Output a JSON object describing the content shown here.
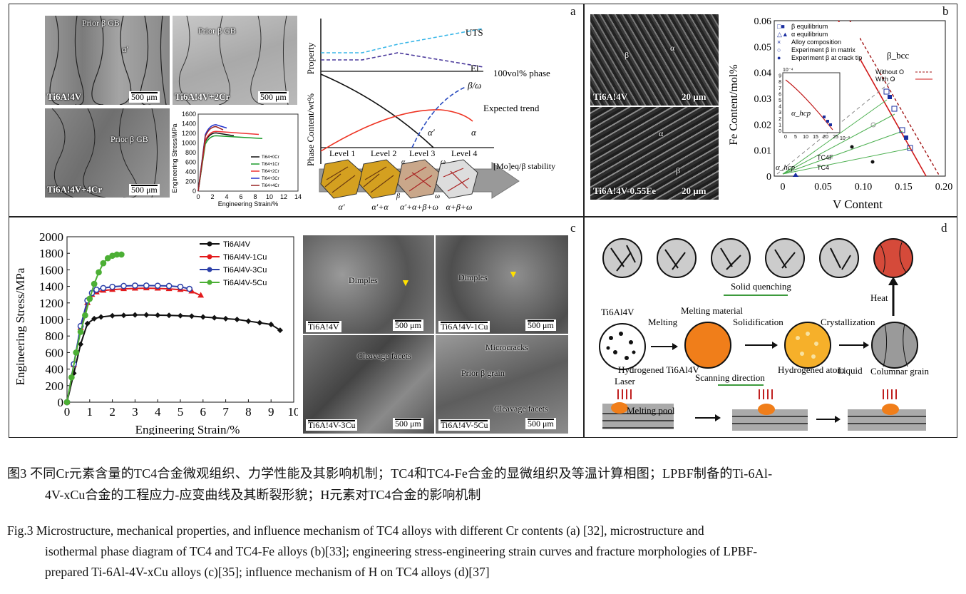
{
  "panels": {
    "a": {
      "letter": "a",
      "micrographs": [
        {
          "sample": "Ti6A!4V",
          "scale": "500 μm",
          "labels": [
            "Prior β GB",
            "α′"
          ]
        },
        {
          "sample": "Ti6A!4V+2Cr",
          "scale": "500 μm",
          "labels": [
            "Prior β GB"
          ]
        },
        {
          "sample": "Ti6A!4V+4Cr",
          "scale": "500 μm",
          "labels": [
            "Prior β GB"
          ]
        }
      ],
      "curve_chart": {
        "ylabel": "Engineering Stress/MPa",
        "xlabel": "Engineering Strain/%",
        "yticks": [
          "0",
          "200",
          "400",
          "600",
          "800",
          "1000",
          "1200",
          "1400",
          "1600"
        ],
        "xticks": [
          "0",
          "2",
          "4",
          "6",
          "8",
          "10",
          "12",
          "14"
        ],
        "legend": [
          "Ti64+0Cr",
          "Ti64+1Cr",
          "Ti64+2Cr",
          "Ti64+3Cr",
          "Ti64+4Cr"
        ],
        "colors": [
          "#111111",
          "#1a9a2a",
          "#ee3333",
          "#2233cc",
          "#992222"
        ]
      },
      "schematic": {
        "ylabel_top": "Property",
        "ylabel_bottom": "Phase Content/wt%",
        "uts": "UTS",
        "el": "El",
        "hundred": "100vol% phase",
        "expected": "Expected trend",
        "beta_omega": "β/ω",
        "alpha": "α",
        "alpha_prime": "α′",
        "levels": [
          "Level 1",
          "Level 2",
          "Level 3",
          "Level 4"
        ],
        "xaxis": "[Mo]eq/β stability",
        "phases": [
          "α′",
          "α′+α",
          "α′+α+β+ω",
          "α+β+ω"
        ],
        "small": [
          "α",
          "ω",
          "β",
          "ω"
        ]
      }
    },
    "b": {
      "letter": "b",
      "micrographs": [
        {
          "sample": "Ti6A!4V",
          "scale": "20 μm",
          "labels": [
            "β",
            "α"
          ]
        },
        {
          "sample": "Ti6A!4V-0.55Fe",
          "scale": "20 μm",
          "labels": [
            "α",
            "β"
          ]
        }
      ],
      "chart": {
        "ylabel": "Fe Content/mol%",
        "xlabel": "V Content",
        "yticks": [
          "0",
          "0.01",
          "0.02",
          "0.03",
          "0.04",
          "0.05",
          "0.06"
        ],
        "xticks": [
          "0",
          "0.05",
          "0.10",
          "0.15",
          "0.20"
        ],
        "legend": [
          "β equilibrium",
          "α equilibrium",
          "Alloy composition",
          "Experiment β in matrix",
          "Experiment β at crack tip"
        ],
        "region_beta": "β_bcc",
        "region_alpha": "α_hcp",
        "without_o": "Without O",
        "with_o": "With O",
        "tc4f": "TC4F",
        "tc4": "TC4",
        "inset_region": "α_hcp",
        "inset_exp": "10⁻⁴",
        "inset_yticks": [
          "0",
          "1",
          "2",
          "3",
          "4",
          "5",
          "6",
          "7",
          "8",
          "9"
        ],
        "inset_xticks": [
          "0",
          "5",
          "10",
          "15",
          "20",
          "25"
        ],
        "inset_xexp": "10⁻³"
      }
    },
    "c": {
      "letter": "c",
      "chart_data": {
        "type": "line",
        "xlabel": "Engineering Strain/%",
        "ylabel": "Engineering Stress/MPa",
        "xlim": [
          0,
          10
        ],
        "ylim": [
          0,
          2000
        ],
        "xticks": [
          "0",
          "1",
          "2",
          "3",
          "4",
          "5",
          "6",
          "7",
          "8",
          "9",
          "10"
        ],
        "yticks": [
          "0",
          "200",
          "400",
          "600",
          "800",
          "1000",
          "1200",
          "1400",
          "1600",
          "1800",
          "2000"
        ],
        "legend_position": "top-right",
        "series": [
          {
            "name": "Ti6Al4V",
            "color": "#111111",
            "marker": "diamond",
            "x": [
              0,
              0.3,
              0.6,
              0.9,
              1.2,
              1.5,
              2.0,
              2.5,
              3.0,
              3.5,
              4.0,
              4.5,
              5.0,
              5.5,
              6.0,
              6.5,
              7.0,
              7.5,
              8.0,
              8.5,
              9.0,
              9.4
            ],
            "y": [
              0,
              350,
              700,
              950,
              1010,
              1030,
              1045,
              1050,
              1055,
              1055,
              1052,
              1050,
              1045,
              1040,
              1030,
              1020,
              1010,
              1000,
              980,
              960,
              940,
              870
            ]
          },
          {
            "name": "Ti6Al4V-1Cu",
            "color": "#e31a1c",
            "marker": "triangle",
            "x": [
              0,
              0.3,
              0.6,
              0.9,
              1.1,
              1.3,
              1.6,
              2.0,
              2.5,
              3.0,
              3.5,
              4.0,
              4.5,
              5.0,
              5.5,
              5.9
            ],
            "y": [
              0,
              450,
              900,
              1200,
              1300,
              1330,
              1350,
              1360,
              1370,
              1375,
              1378,
              1375,
              1370,
              1360,
              1340,
              1290
            ]
          },
          {
            "name": "Ti6Al4V-3Cu",
            "color": "#2b3fa8",
            "marker": "circle",
            "x": [
              0,
              0.3,
              0.6,
              0.9,
              1.1,
              1.3,
              1.6,
              2.0,
              2.5,
              3.0,
              3.5,
              4.0,
              4.5,
              5.0,
              5.4
            ],
            "y": [
              0,
              460,
              920,
              1230,
              1320,
              1360,
              1380,
              1395,
              1405,
              1410,
              1410,
              1408,
              1405,
              1395,
              1370
            ]
          },
          {
            "name": "Ti6Al4V-5Cu",
            "color": "#4caf35",
            "marker": "circle",
            "x": [
              0,
              0.2,
              0.4,
              0.6,
              0.8,
              1.0,
              1.2,
              1.4,
              1.6,
              1.8,
              2.0,
              2.2,
              2.4
            ],
            "y": [
              0,
              300,
              600,
              850,
              1050,
              1250,
              1430,
              1570,
              1680,
              1740,
              1770,
              1785,
              1785
            ]
          }
        ]
      },
      "micrographs": [
        {
          "sample": "Ti6A!4V",
          "scale": "500 μm",
          "labels": [
            "Dimples"
          ]
        },
        {
          "sample": "Ti6A!4V-1Cu",
          "scale": "500 μm",
          "labels": [
            "Dimples"
          ]
        },
        {
          "sample": "Ti6A!4V-3Cu",
          "scale": "500 μm",
          "labels": [
            "Cleavage facets"
          ]
        },
        {
          "sample": "Ti6A!4V-5Cu",
          "scale": "500 μm",
          "labels": [
            "Microcracks",
            "Prior β grain",
            "Cleavage facets"
          ]
        }
      ]
    },
    "d": {
      "letter": "d",
      "solid_quenching": "Solid quenching",
      "heat": "Heat",
      "ti": "Ti6Al4V",
      "melting": "Melting",
      "melting_material": "Melting material",
      "solidification": "Solidification",
      "crystallization": "Crystallization",
      "hydrogened_ti": "Hydrogened Ti6Al4V",
      "hydrogened_atom": "Hydrogened atom",
      "liquid": "Liquid",
      "columnar": "Columnar grain",
      "laser": "Laser",
      "scanning": "Scanning direction",
      "pool": "Melting pool"
    }
  },
  "captions": {
    "cn_1": "图3  不同Cr元素含量的TC4合金微观组织、力学性能及其影响机制；TC4和TC4-Fe合金的显微组织及等温计算相图；LPBF制备的Ti-6Al-",
    "cn_2": "4V-xCu合金的工程应力-应变曲线及其断裂形貌；H元素对TC4合金的影响机制",
    "en_1": "Fig.3  Microstructure, mechanical properties, and influence mechanism of TC4 alloys with different Cr contents (a) [32], microstructure and",
    "en_2": "isothermal phase diagram of TC4 and TC4-Fe alloys (b)[33]; engineering stress-engineering strain curves and fracture morphologies of LPBF-",
    "en_3": "prepared Ti-6Al-4V-xCu alloys (c)[35]; influence mechanism of H on TC4 alloys (d)[37]"
  }
}
